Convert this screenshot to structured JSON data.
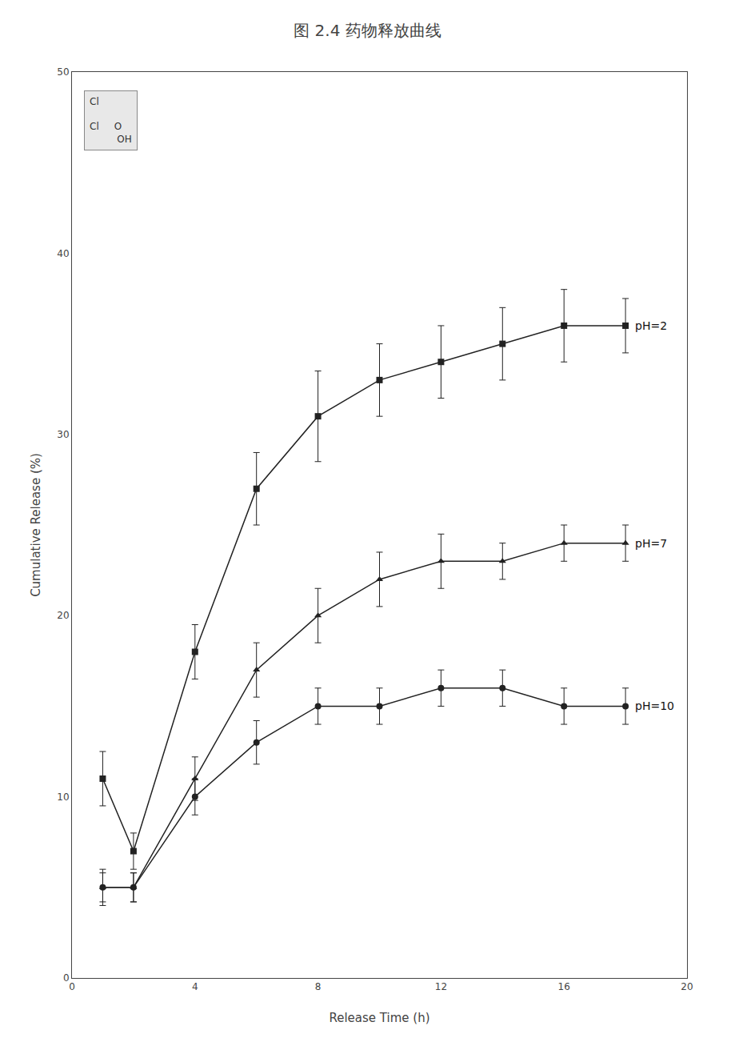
{
  "chart_data": {
    "type": "line",
    "title": "图 2.4 药物释放曲线",
    "x_label": "Release Time (h)",
    "y_label": "Cumulative Release (%)",
    "xlim": [
      0,
      20
    ],
    "ylim": [
      0,
      50
    ],
    "xticks": [
      0,
      4,
      8,
      12,
      16,
      20
    ],
    "yticks": [
      0,
      10,
      20,
      30,
      40,
      50
    ],
    "grid": false,
    "annotations": [
      "Cl\n\nCl     O\n         OH"
    ],
    "x": [
      1,
      2,
      4,
      6,
      8,
      10,
      12,
      14,
      16,
      18
    ],
    "series": [
      {
        "name": "pH=2",
        "color": "#222222",
        "marker": "square",
        "values": [
          11,
          7,
          18,
          27,
          31,
          33,
          34,
          35,
          36,
          36
        ],
        "error": [
          1.5,
          1.0,
          1.5,
          2.0,
          2.5,
          2.0,
          2.0,
          2.0,
          2.0,
          1.5
        ]
      },
      {
        "name": "pH=7",
        "color": "#222222",
        "marker": "triangle-up",
        "values": [
          5,
          5,
          11,
          17,
          20,
          22,
          23,
          23,
          24,
          24
        ],
        "error": [
          1.0,
          0.8,
          1.2,
          1.5,
          1.5,
          1.5,
          1.5,
          1.0,
          1.0,
          1.0
        ]
      },
      {
        "name": "pH=10",
        "color": "#222222",
        "marker": "circle",
        "values": [
          5,
          5,
          10,
          13,
          15,
          15,
          16,
          16,
          15,
          15
        ],
        "error": [
          0.8,
          0.8,
          1.0,
          1.2,
          1.0,
          1.0,
          1.0,
          1.0,
          1.0,
          1.0
        ]
      }
    ]
  }
}
